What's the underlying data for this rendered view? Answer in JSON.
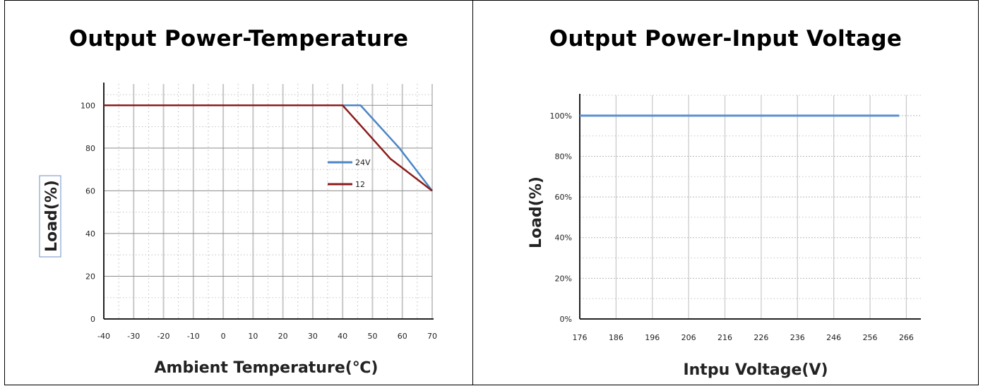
{
  "chart_data": [
    {
      "type": "line",
      "title": "Output Power-Temperature",
      "xlabel": "Ambient Temperature(℃)",
      "ylabel": "Load(%)",
      "xlim": [
        -40,
        70
      ],
      "ylim": [
        0,
        110
      ],
      "xticks": [
        -40,
        -30,
        -20,
        -10,
        0,
        10,
        20,
        30,
        40,
        50,
        60,
        70
      ],
      "yticks": [
        0,
        20,
        40,
        60,
        80,
        100
      ],
      "ytick_labels": [
        "0",
        "20",
        "40",
        "60",
        "80",
        "100"
      ],
      "grid": true,
      "legend": "right",
      "series": [
        {
          "name": "24V",
          "color": "#4a86c6",
          "x": [
            -40,
            40,
            46,
            59,
            70
          ],
          "y": [
            100,
            100,
            100,
            80,
            60
          ]
        },
        {
          "name": "12",
          "color": "#8b1c1c",
          "x": [
            -40,
            40,
            56,
            70
          ],
          "y": [
            100,
            100,
            75,
            60
          ]
        }
      ]
    },
    {
      "type": "line",
      "title": "Output Power-Input Voltage",
      "xlabel": "Intpu Voltage(V)",
      "ylabel": "Load(%)",
      "xlim": [
        176,
        270
      ],
      "ylim": [
        0,
        110
      ],
      "xticks": [
        176,
        186,
        196,
        206,
        216,
        226,
        236,
        246,
        256,
        266
      ],
      "yticks": [
        0,
        20,
        40,
        60,
        80,
        100
      ],
      "ytick_labels": [
        "0%",
        "20%",
        "40%",
        "60%",
        "80%",
        "100%"
      ],
      "grid": true,
      "series": [
        {
          "color": "#5b8fcf",
          "x": [
            176,
            264
          ],
          "y": [
            100,
            100
          ]
        }
      ]
    }
  ]
}
